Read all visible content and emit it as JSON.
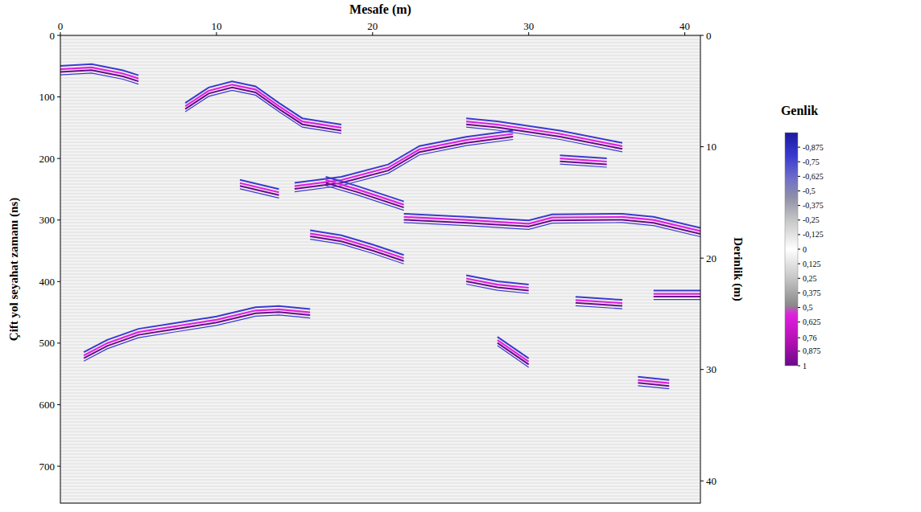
{
  "chart_data": {
    "type": "radargram",
    "x_label": "Mesafe (m)",
    "y_label": "Çift yol seyahat zamanı (ns)",
    "y2_label": "Derinlik (m)",
    "xlim": [
      0,
      41
    ],
    "xticks": [
      0,
      10,
      20,
      30,
      40
    ],
    "ylim": [
      0,
      760
    ],
    "yticks": [
      0,
      100,
      200,
      300,
      400,
      500,
      600,
      700
    ],
    "y2lim": [
      0,
      42
    ],
    "y2ticks": [
      0,
      10,
      20,
      30,
      40
    ],
    "series": [
      {
        "x": [
          1.5,
          3,
          5,
          7.5,
          10,
          12.5,
          14,
          16
        ],
        "values": [
          520,
          500,
          482,
          472,
          462,
          447,
          445,
          450
        ]
      },
      {
        "x": [
          22,
          26,
          30,
          31.5,
          36,
          38,
          41
        ],
        "values": [
          295,
          300,
          306,
          296,
          295,
          300,
          318
        ]
      },
      {
        "x": [
          16,
          18,
          20,
          22
        ],
        "values": [
          322,
          330,
          345,
          362
        ]
      },
      {
        "x": [
          15,
          18,
          21,
          23,
          26,
          29
        ],
        "values": [
          245,
          235,
          215,
          185,
          170,
          160
        ]
      },
      {
        "x": [
          17,
          19,
          22
        ],
        "values": [
          235,
          250,
          275
        ]
      },
      {
        "x": [
          0,
          2,
          4,
          5
        ],
        "values": [
          55,
          52,
          62,
          70
        ]
      },
      {
        "x": [
          8,
          9.5,
          11,
          12.5,
          14,
          15.5,
          18
        ],
        "values": [
          115,
          90,
          80,
          88,
          115,
          140,
          150
        ]
      },
      {
        "x": [
          26,
          28,
          32,
          36
        ],
        "values": [
          140,
          145,
          160,
          180
        ]
      },
      {
        "x": [
          32,
          35
        ],
        "values": [
          200,
          205
        ]
      },
      {
        "x": [
          26,
          28,
          30
        ],
        "values": [
          395,
          405,
          410
        ]
      },
      {
        "x": [
          33,
          36
        ],
        "values": [
          430,
          435
        ]
      },
      {
        "x": [
          38,
          41
        ],
        "values": [
          420,
          420
        ]
      },
      {
        "x": [
          28,
          30
        ],
        "values": [
          495,
          530
        ]
      },
      {
        "x": [
          11.5,
          14
        ],
        "values": [
          240,
          255
        ]
      },
      {
        "x": [
          37,
          39
        ],
        "values": [
          560,
          565
        ]
      }
    ],
    "colorbar": {
      "title": "Genlik",
      "range": [
        -1,
        1
      ],
      "ticks": [
        {
          "value": -0.875,
          "label": "-0,875"
        },
        {
          "value": -0.75,
          "label": "-0,75"
        },
        {
          "value": -0.625,
          "label": "-0,625"
        },
        {
          "value": -0.5,
          "label": "-0,5"
        },
        {
          "value": -0.375,
          "label": "-0,375"
        },
        {
          "value": -0.25,
          "label": "-0,25"
        },
        {
          "value": -0.125,
          "label": "-0,125"
        },
        0,
        {
          "value": 0.125,
          "label": "0,125"
        },
        {
          "value": 0.25,
          "label": "0,25"
        },
        {
          "value": 0.375,
          "label": "0,375"
        },
        {
          "value": 0.5,
          "label": "0,5"
        },
        {
          "value": 0.625,
          "label": "0,625"
        },
        {
          "value": 0.76,
          "label": "0,76"
        },
        {
          "value": 0.875,
          "label": "0,875"
        },
        1
      ]
    }
  }
}
